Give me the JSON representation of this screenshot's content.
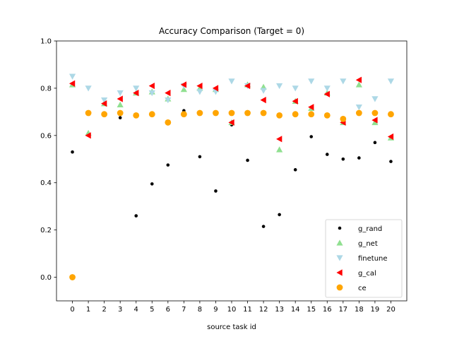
{
  "chart_data": {
    "type": "scatter",
    "title": "Accuracy Comparison (Target = 0)",
    "xlabel": "source task id",
    "ylabel": "",
    "xlim": [
      -1,
      21
    ],
    "ylim": [
      -0.1,
      1.0
    ],
    "x_ticks": [
      0,
      1,
      2,
      3,
      4,
      5,
      6,
      7,
      8,
      9,
      10,
      11,
      12,
      13,
      14,
      15,
      16,
      17,
      18,
      19,
      20
    ],
    "y_ticks": [
      0.0,
      0.2,
      0.4,
      0.6,
      0.8,
      1.0
    ],
    "y_tick_labels": [
      "0.0",
      "0.2",
      "0.4",
      "0.6",
      "0.8",
      "1.0"
    ],
    "grid": false,
    "legend_position": "lower-right",
    "x": [
      0,
      1,
      2,
      3,
      4,
      5,
      6,
      7,
      8,
      9,
      10,
      11,
      12,
      13,
      14,
      15,
      16,
      17,
      18,
      19,
      20
    ],
    "series": [
      {
        "name": "g_rand",
        "marker": "dot",
        "color": "#000000",
        "values": [
          0.53,
          null,
          null,
          0.675,
          0.26,
          0.395,
          0.475,
          0.705,
          0.51,
          0.365,
          0.645,
          0.495,
          0.215,
          0.265,
          0.455,
          0.595,
          0.52,
          0.5,
          0.505,
          0.57,
          0.49
        ]
      },
      {
        "name": "g_net",
        "marker": "triangle-up",
        "color": "#90e090",
        "values": [
          0.815,
          0.61,
          0.735,
          0.73,
          0.78,
          0.785,
          0.755,
          0.795,
          0.8,
          0.795,
          0.655,
          0.815,
          0.805,
          0.54,
          0.745,
          0.715,
          0.78,
          0.655,
          0.815,
          0.655,
          0.59
        ]
      },
      {
        "name": "finetune",
        "marker": "triangle-down",
        "color": "#add8e6",
        "values": [
          0.85,
          0.8,
          0.75,
          0.78,
          0.8,
          0.78,
          0.75,
          0.81,
          0.785,
          0.785,
          0.83,
          0.81,
          0.79,
          0.81,
          0.8,
          0.83,
          0.8,
          0.83,
          0.72,
          0.755,
          0.83
        ]
      },
      {
        "name": "g_cal",
        "marker": "triangle-left",
        "color": "#ff0000",
        "values": [
          0.82,
          0.6,
          0.735,
          0.755,
          0.78,
          0.81,
          0.78,
          0.815,
          0.81,
          0.8,
          0.655,
          0.81,
          0.75,
          0.585,
          0.745,
          0.72,
          0.775,
          0.655,
          0.835,
          0.665,
          0.595
        ]
      },
      {
        "name": "ce",
        "marker": "circle",
        "color": "#ffa500",
        "values": [
          0.0,
          0.695,
          0.69,
          0.695,
          0.685,
          0.69,
          0.655,
          0.69,
          0.695,
          0.695,
          0.695,
          0.695,
          0.695,
          0.685,
          0.69,
          0.69,
          0.685,
          0.67,
          0.695,
          0.695,
          0.69
        ]
      }
    ]
  }
}
